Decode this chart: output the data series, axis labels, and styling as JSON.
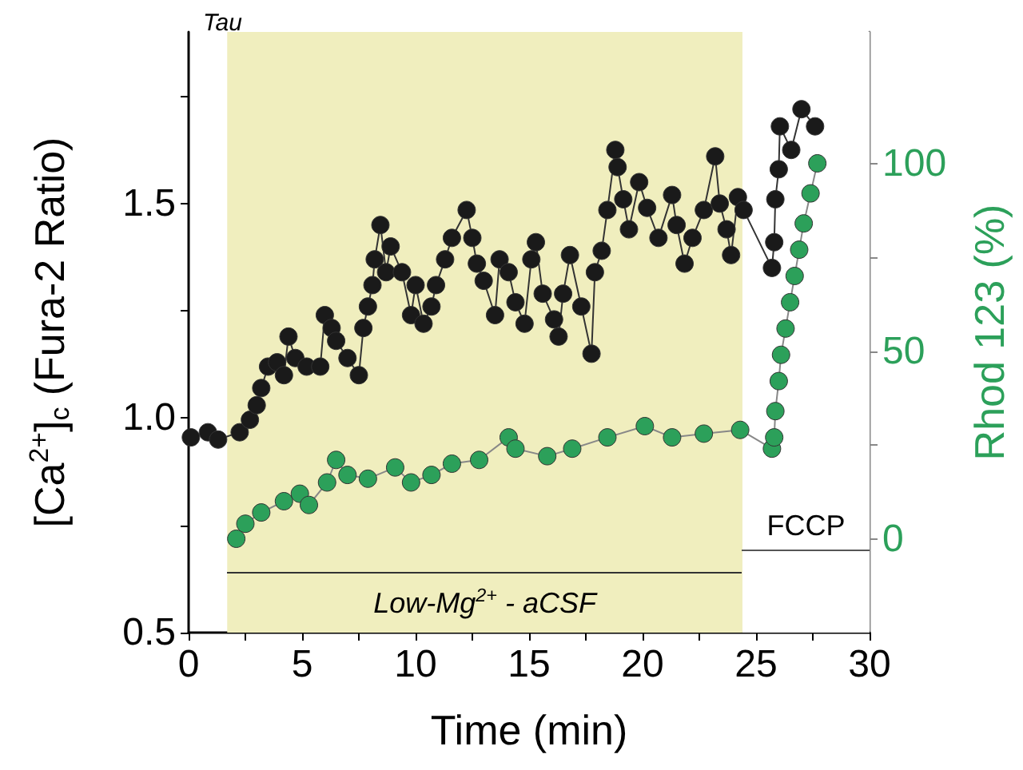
{
  "chart_data": {
    "type": "line",
    "title": "Tau",
    "xlabel": "Time (min)",
    "ylabel": "[Ca$^{2+}$]$_{c}$ (Fura-2 Ratio)",
    "y2label": "Rhod 123 (%)",
    "xlim": [
      0,
      30
    ],
    "xticks": [
      0,
      {
        "value": 2.5,
        "label": null
      },
      5,
      {
        "value": 7.5,
        "label": null
      },
      10,
      {
        "value": 12.5,
        "label": null
      },
      15,
      {
        "value": 17.5,
        "label": null
      },
      20,
      {
        "value": 22.5,
        "label": null
      },
      25,
      {
        "value": 27.5,
        "label": null
      },
      30
    ],
    "ylim": [
      0.5,
      1.9
    ],
    "yticks": [
      0.5,
      {
        "value": 0.75,
        "label": null
      },
      {
        "value": 1,
        "label": "1.0"
      },
      {
        "value": 1.25,
        "label": null
      },
      1.5,
      {
        "value": 1.75,
        "label": null
      }
    ],
    "y2lim": [
      -25,
      135
    ],
    "y2ticks": [
      0,
      {
        "value": 25,
        "label": null
      },
      50,
      {
        "value": 75,
        "label": null
      },
      100
    ],
    "grid": false,
    "marker": "circle",
    "line_style": "solid",
    "bands": [
      {
        "axis": "x",
        "from": 1.7,
        "to": 24.4,
        "label": "Low-Mg$^{2+}$ - aCSF",
        "color": "#f0eebe"
      },
      {
        "axis": "x",
        "from": 24.4,
        "to": 30,
        "label": "FCCP",
        "color": "#ffffff"
      }
    ],
    "series": [
      {
        "color": "#1a1a1a",
        "x": [
          0.1,
          0.85,
          1.3,
          2.25,
          2.7,
          3.0,
          3.2,
          3.5,
          3.9,
          4.2,
          4.4,
          4.7,
          5.2,
          5.8,
          6.0,
          6.3,
          6.5,
          7.0,
          7.5,
          7.7,
          7.9,
          8.1,
          8.2,
          8.45,
          8.7,
          8.9,
          9.4,
          9.8,
          10.0,
          10.35,
          10.7,
          10.9,
          11.3,
          11.6,
          12.25,
          12.5,
          12.7,
          13.0,
          13.5,
          13.7,
          14.1,
          14.4,
          14.8,
          15.1,
          15.3,
          15.6,
          16.1,
          16.3,
          16.5,
          16.8,
          17.3,
          17.75,
          17.9,
          18.2,
          18.45,
          18.8,
          18.9,
          19.15,
          19.4,
          19.85,
          20.2,
          20.7,
          21.3,
          21.5,
          21.85,
          22.2,
          22.7,
          23.2,
          23.4,
          23.7,
          23.9,
          24.2,
          24.45,
          25.7,
          25.8,
          25.85,
          26.0,
          26.05,
          26.55,
          27.0,
          27.6
        ],
        "values": [
          0.955,
          0.967,
          0.95,
          0.967,
          0.996,
          1.03,
          1.07,
          1.12,
          1.13,
          1.1,
          1.19,
          1.14,
          1.12,
          1.12,
          1.24,
          1.21,
          1.18,
          1.14,
          1.1,
          1.21,
          1.26,
          1.31,
          1.37,
          1.45,
          1.34,
          1.4,
          1.34,
          1.24,
          1.31,
          1.22,
          1.26,
          1.31,
          1.37,
          1.42,
          1.485,
          1.42,
          1.36,
          1.32,
          1.24,
          1.37,
          1.34,
          1.27,
          1.22,
          1.37,
          1.41,
          1.29,
          1.23,
          1.19,
          1.29,
          1.38,
          1.26,
          1.15,
          1.34,
          1.39,
          1.485,
          1.625,
          1.585,
          1.51,
          1.44,
          1.55,
          1.49,
          1.42,
          1.52,
          1.45,
          1.36,
          1.42,
          1.485,
          1.61,
          1.5,
          1.44,
          1.38,
          1.515,
          1.485,
          1.35,
          1.41,
          1.51,
          1.58,
          1.68,
          1.625,
          1.72,
          1.68
        ]
      },
      {
        "color": "#2ca05a",
        "axis": "y2",
        "x": [
          2.1,
          2.5,
          3.2,
          4.2,
          4.9,
          5.3,
          6.1,
          6.5,
          7.0,
          7.9,
          9.1,
          9.8,
          10.7,
          11.6,
          12.8,
          14.1,
          14.4,
          15.8,
          16.9,
          18.45,
          20.1,
          21.3,
          22.7,
          24.3,
          25.7,
          25.8,
          25.85,
          26.0,
          26.1,
          26.3,
          26.5,
          26.7,
          26.9,
          27.1,
          27.4,
          27.7
        ],
        "values": [
          0,
          4,
          7,
          10,
          12,
          9,
          15,
          21,
          17,
          16,
          19,
          15,
          17,
          20,
          21,
          27,
          24,
          22,
          24,
          27,
          30,
          27,
          28,
          29,
          24,
          27,
          34,
          42,
          49,
          56,
          63,
          70,
          77,
          84,
          92,
          100
        ]
      }
    ]
  }
}
